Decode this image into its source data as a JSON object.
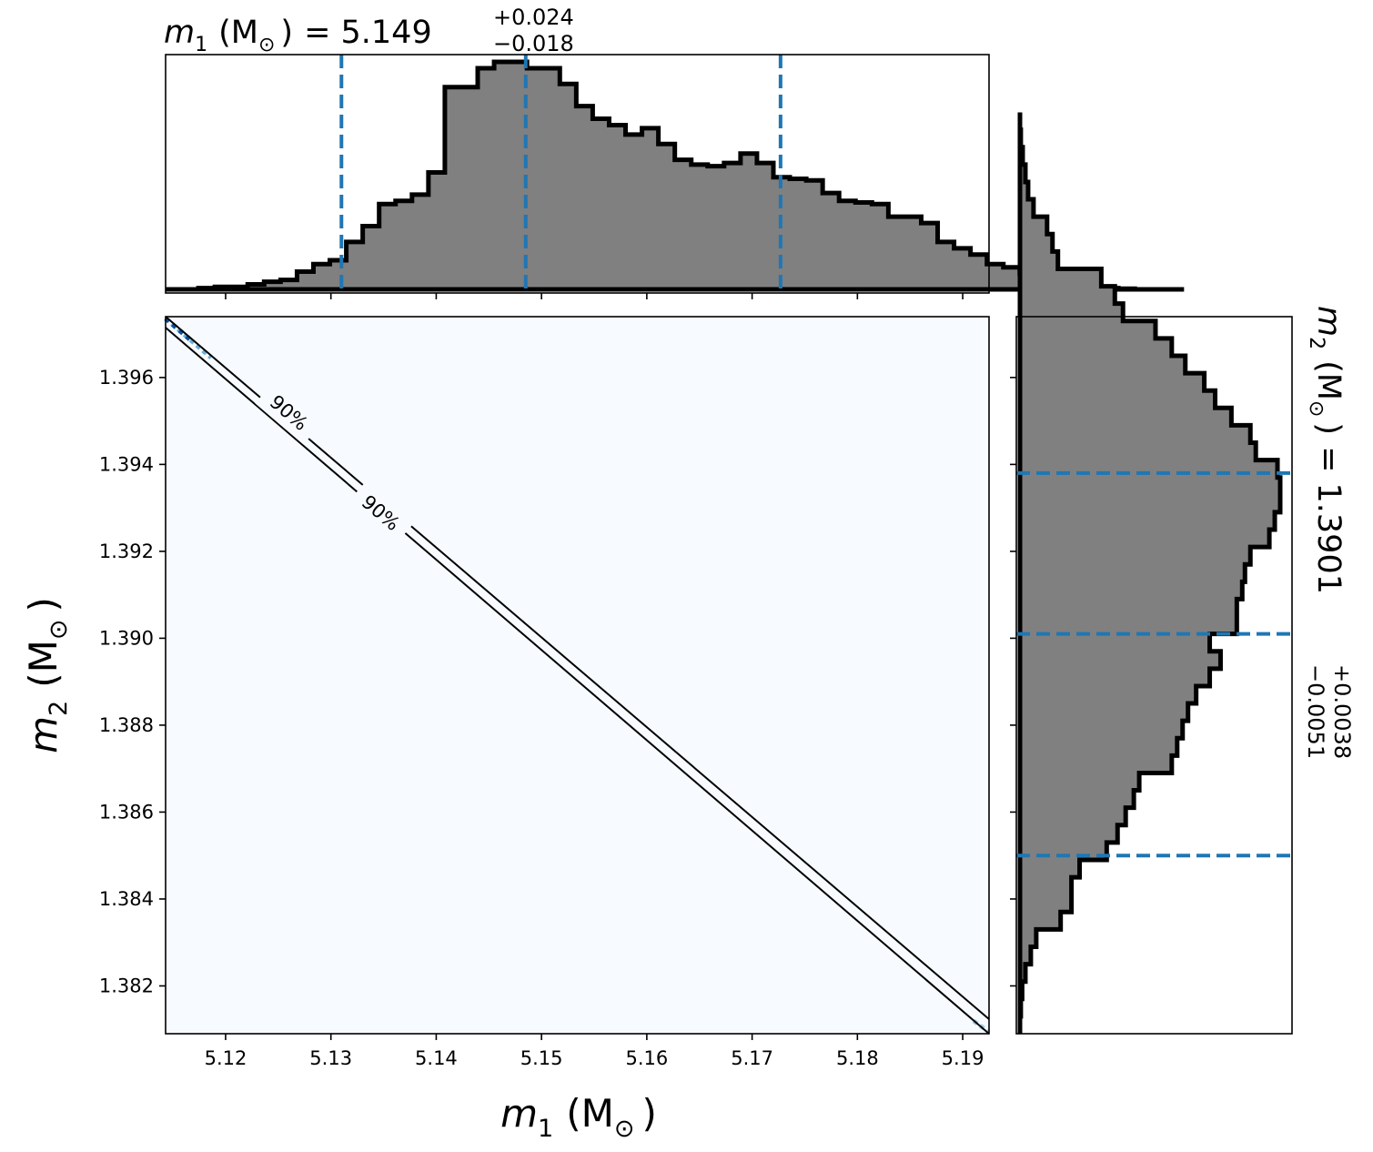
{
  "chart_data": [
    {
      "panel": "top-marginal-m1",
      "type": "histogram-step",
      "title": {
        "var": "m",
        "sub": "1",
        "unit": "(M",
        "unit_sub": "⊙",
        "unit_close": ")",
        "eq": "= 5.149",
        "sup": "+0.024",
        "low": "−0.018"
      },
      "xlim": [
        5.1143,
        5.1925
      ],
      "bin_start": 5.1143,
      "bin_width": 0.00156,
      "counts": [
        0.0,
        0.0,
        0.004,
        0.008,
        0.008,
        0.016,
        0.024,
        0.03,
        0.056,
        0.08,
        0.092,
        0.15,
        0.2,
        0.27,
        0.28,
        0.3,
        0.37,
        0.64,
        0.64,
        0.7,
        0.72,
        0.72,
        0.7,
        0.7,
        0.65,
        0.58,
        0.54,
        0.52,
        0.49,
        0.51,
        0.46,
        0.41,
        0.395,
        0.39,
        0.4,
        0.43,
        0.4,
        0.355,
        0.35,
        0.345,
        0.305,
        0.28,
        0.275,
        0.27,
        0.23,
        0.23,
        0.21,
        0.15,
        0.13,
        0.11,
        0.08,
        0.07,
        0.05,
        0.03,
        0.02,
        0.01,
        0.005,
        0.004,
        0.002,
        0.0,
        0.0,
        0.0
      ],
      "vlines": [
        5.131,
        5.1485,
        5.1727
      ]
    },
    {
      "panel": "joint-m1-m2",
      "type": "2d-posterior",
      "x": [
        5.1143,
        5.1925
      ],
      "y": [
        1.3973,
        1.3809
      ],
      "contour_labels": [
        "90%",
        "90%"
      ],
      "xticks": [
        "5.12",
        "5.13",
        "5.14",
        "5.15",
        "5.16",
        "5.17",
        "5.18",
        "5.19"
      ],
      "xtick_values": [
        5.12,
        5.13,
        5.14,
        5.15,
        5.16,
        5.17,
        5.18,
        5.19
      ],
      "yticks": [
        "1.396",
        "1.394",
        "1.392",
        "1.390",
        "1.388",
        "1.386",
        "1.384",
        "1.382"
      ],
      "ytick_values": [
        1.396,
        1.394,
        1.392,
        1.39,
        1.388,
        1.386,
        1.384,
        1.382
      ],
      "xlabel": {
        "var": "m",
        "sub": "1",
        "unit": "(M",
        "unit_sub": "⊙",
        "unit_close": ")"
      },
      "ylabel": {
        "var": "m",
        "sub": "2",
        "unit": "(M",
        "unit_sub": "⊙",
        "unit_close": ")"
      },
      "xlim": [
        5.1143,
        5.1925
      ],
      "ylim": [
        1.3809,
        1.3974
      ]
    },
    {
      "panel": "right-marginal-m2",
      "type": "histogram-step",
      "orientation": "horizontal",
      "title": {
        "var": "m",
        "sub": "2",
        "unit": "(M",
        "unit_sub": "⊙",
        "unit_close": ")",
        "eq": "= 1.3901",
        "sup": "+0.0038",
        "low": "−0.0051"
      },
      "ylim": [
        1.3809,
        1.3974
      ],
      "bin_start": 1.3809,
      "bin_width": 0.0004,
      "counts": [
        0.0,
        0.003,
        0.008,
        0.02,
        0.04,
        0.06,
        0.15,
        0.19,
        0.19,
        0.22,
        0.32,
        0.36,
        0.39,
        0.42,
        0.44,
        0.56,
        0.58,
        0.6,
        0.62,
        0.65,
        0.7,
        0.74,
        0.7,
        0.8,
        0.8,
        0.82,
        0.83,
        0.85,
        0.92,
        0.94,
        0.96,
        0.96,
        0.95,
        0.87,
        0.85,
        0.78,
        0.72,
        0.68,
        0.61,
        0.56,
        0.5,
        0.38,
        0.35,
        0.3,
        0.14,
        0.12,
        0.1,
        0.05,
        0.03,
        0.02,
        0.01,
        0.003,
        0.0
      ],
      "hlines": [
        1.3938,
        1.3901,
        1.385
      ]
    }
  ]
}
